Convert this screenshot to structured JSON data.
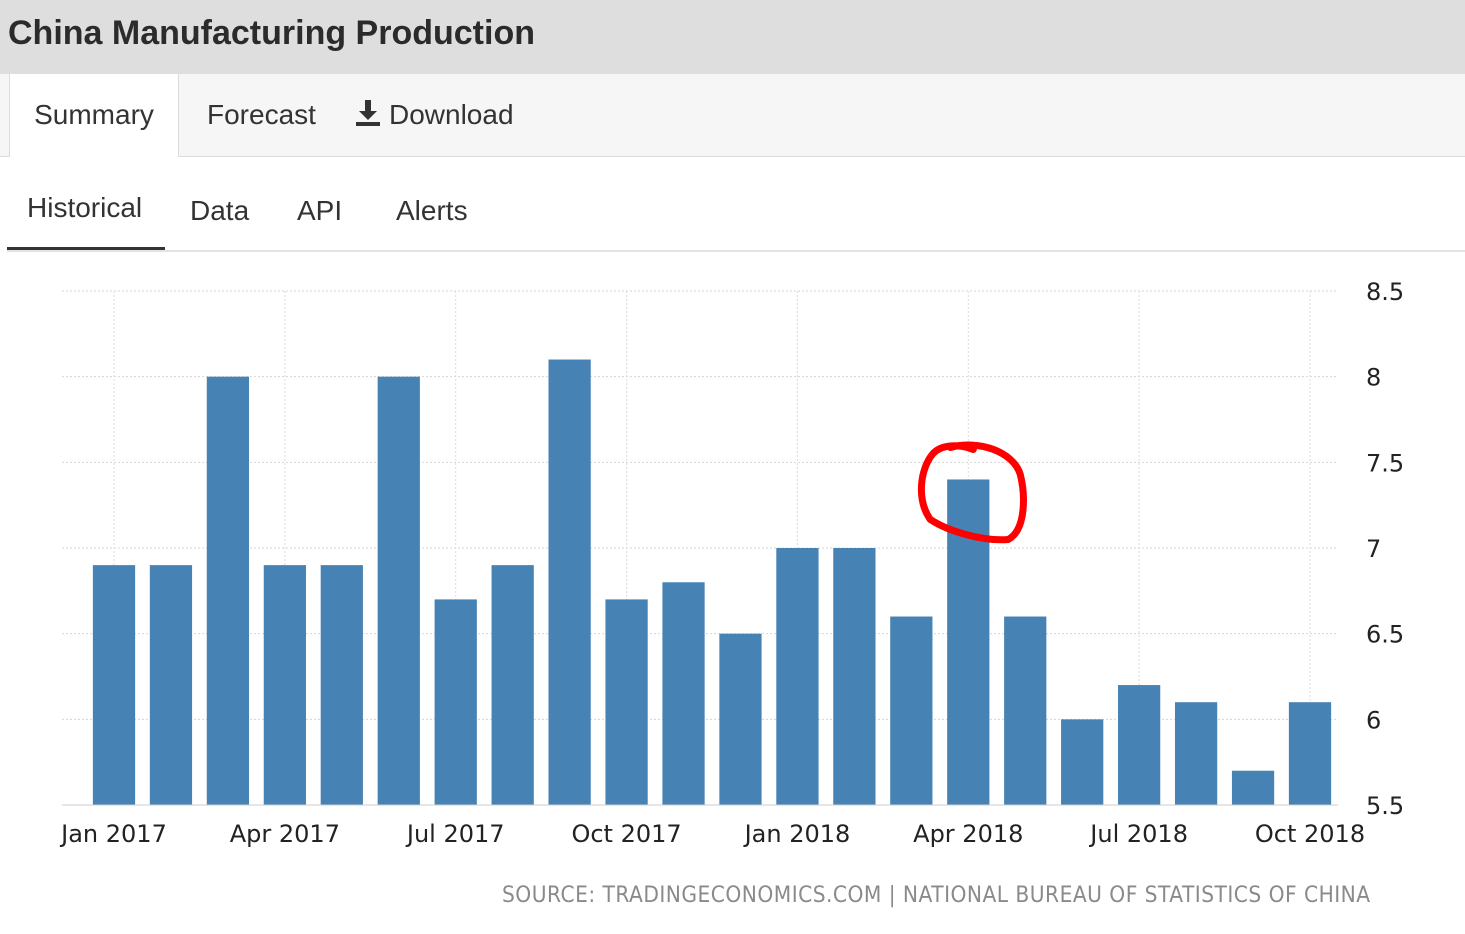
{
  "header": {
    "title": "China Manufacturing Production"
  },
  "top_tabs": [
    {
      "label": "Summary"
    },
    {
      "label": "Forecast"
    },
    {
      "label": "Download"
    }
  ],
  "sub_tabs": [
    {
      "label": "Historical"
    },
    {
      "label": "Data"
    },
    {
      "label": "API"
    },
    {
      "label": "Alerts"
    }
  ],
  "source": {
    "prefix": "SOURCE: TRADINGECONOMICS.COM",
    "separator": "|",
    "org": "NATIONAL BUREAU OF STATISTICS OF CHINA"
  },
  "colors": {
    "bar": "#4682b4",
    "highlight_circle": "#ff0000",
    "header_bg": "#dedede"
  },
  "chart_data": {
    "type": "bar",
    "title": "",
    "xlabel": "",
    "ylabel": "",
    "ylim": [
      5.5,
      8.5
    ],
    "y_ticks": [
      "8.5",
      "8",
      "7.5",
      "7",
      "6.5",
      "6",
      "5.5"
    ],
    "y_axis_position": "right",
    "grid": true,
    "categories": [
      "Jan 2017",
      "Feb 2017",
      "Mar 2017",
      "Apr 2017",
      "May 2017",
      "Jun 2017",
      "Jul 2017",
      "Aug 2017",
      "Sep 2017",
      "Oct 2017",
      "Nov 2017",
      "Dec 2017",
      "Jan 2018",
      "Feb 2018",
      "Mar 2018",
      "Apr 2018",
      "May 2018",
      "Jun 2018",
      "Jul 2018",
      "Aug 2018",
      "Sep 2018",
      "Oct 2018"
    ],
    "values": [
      6.9,
      6.9,
      8.0,
      6.9,
      6.9,
      8.0,
      6.7,
      6.9,
      8.1,
      6.7,
      6.8,
      6.5,
      7.0,
      7.0,
      6.6,
      7.4,
      6.6,
      6.0,
      6.2,
      6.1,
      5.7,
      6.1
    ],
    "x_tick_labels": [
      "Jan 2017",
      "Apr 2017",
      "Jul 2017",
      "Oct 2017",
      "Jan 2018",
      "Apr 2018",
      "Jul 2018",
      "Oct 2018"
    ],
    "annotation": {
      "type": "hand-drawn circle",
      "target": "Apr 2018"
    }
  }
}
